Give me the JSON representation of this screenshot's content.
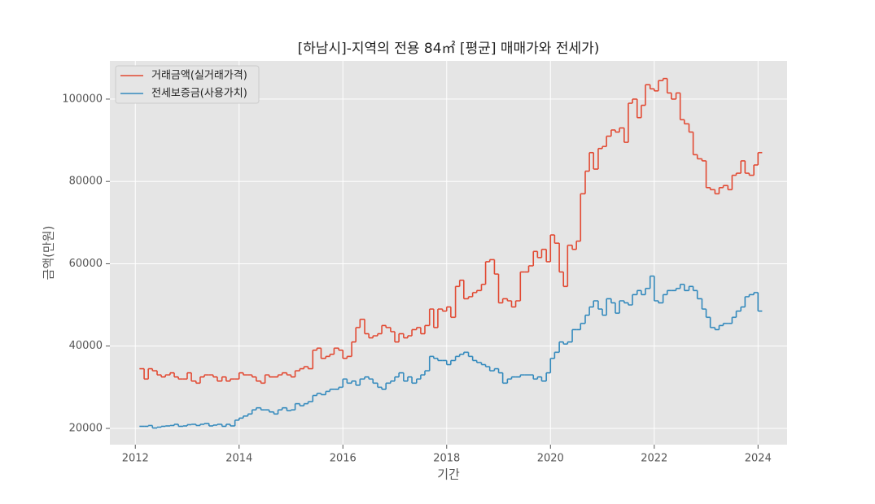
{
  "chart_data": {
    "type": "step",
    "title": "[하남시]-지역의 전용 84㎡ [평균] 매매가와 전세가)",
    "xlabel": "기간",
    "ylabel": "금액(만원)",
    "xlim": [
      2011.51,
      2024.56
    ],
    "xticks": [
      2012,
      2014,
      2016,
      2018,
      2020,
      2022,
      2024
    ],
    "ylim": [
      16050,
      109270
    ],
    "yticks": [
      20000,
      40000,
      60000,
      80000,
      100000
    ],
    "grid": true,
    "legend": "upper left",
    "x": [
      2012.08,
      2012.17,
      2012.25,
      2012.33,
      2012.42,
      2012.5,
      2012.58,
      2012.67,
      2012.75,
      2012.83,
      2012.92,
      2013.0,
      2013.08,
      2013.17,
      2013.25,
      2013.33,
      2013.42,
      2013.5,
      2013.58,
      2013.67,
      2013.75,
      2013.83,
      2013.92,
      2014.0,
      2014.08,
      2014.17,
      2014.25,
      2014.33,
      2014.42,
      2014.5,
      2014.58,
      2014.67,
      2014.75,
      2014.83,
      2014.92,
      2015.0,
      2015.08,
      2015.17,
      2015.25,
      2015.33,
      2015.42,
      2015.5,
      2015.58,
      2015.67,
      2015.75,
      2015.83,
      2015.92,
      2016.0,
      2016.08,
      2016.17,
      2016.25,
      2016.33,
      2016.42,
      2016.5,
      2016.58,
      2016.67,
      2016.75,
      2016.83,
      2016.92,
      2017.0,
      2017.08,
      2017.17,
      2017.25,
      2017.33,
      2017.42,
      2017.5,
      2017.58,
      2017.67,
      2017.75,
      2017.83,
      2017.92,
      2018.0,
      2018.08,
      2018.17,
      2018.25,
      2018.33,
      2018.42,
      2018.5,
      2018.58,
      2018.67,
      2018.75,
      2018.83,
      2018.92,
      2019.0,
      2019.08,
      2019.17,
      2019.25,
      2019.33,
      2019.42,
      2019.5,
      2019.58,
      2019.67,
      2019.75,
      2019.83,
      2019.92,
      2020.0,
      2020.08,
      2020.17,
      2020.25,
      2020.33,
      2020.42,
      2020.5,
      2020.58,
      2020.67,
      2020.75,
      2020.83,
      2020.92,
      2021.0,
      2021.08,
      2021.17,
      2021.25,
      2021.33,
      2021.42,
      2021.5,
      2021.58,
      2021.67,
      2021.75,
      2021.83,
      2021.92,
      2022.0,
      2022.08,
      2022.17,
      2022.25,
      2022.33,
      2022.42,
      2022.5,
      2022.58,
      2022.67,
      2022.75,
      2022.83,
      2022.92,
      2023.0,
      2023.08,
      2023.17,
      2023.25,
      2023.33,
      2023.42,
      2023.5,
      2023.58,
      2023.67,
      2023.75,
      2023.83,
      2023.92,
      2024.0
    ],
    "series": [
      {
        "name": "거래금액(실거래가격)",
        "color": "#E24A33",
        "values": [
          34500,
          32000,
          34500,
          34000,
          33000,
          32500,
          33000,
          33500,
          32500,
          32000,
          32000,
          33500,
          31500,
          31000,
          32500,
          33000,
          33000,
          32500,
          31500,
          32500,
          31500,
          32000,
          32000,
          33500,
          33000,
          33000,
          32500,
          31500,
          31000,
          33000,
          32500,
          32500,
          33000,
          33500,
          33000,
          32500,
          34000,
          34500,
          35000,
          34500,
          39000,
          39500,
          37000,
          37500,
          38000,
          39500,
          39000,
          37000,
          37500,
          41000,
          44500,
          46500,
          43000,
          42000,
          42500,
          43000,
          45000,
          44500,
          43500,
          41000,
          43000,
          42000,
          42500,
          44000,
          44500,
          43000,
          45000,
          49000,
          44500,
          49000,
          48500,
          49500,
          47000,
          54500,
          56000,
          51500,
          52000,
          53000,
          53500,
          55000,
          60500,
          61000,
          57500,
          50500,
          51500,
          51000,
          49500,
          51000,
          58000,
          58000,
          59500,
          63000,
          61500,
          63500,
          60500,
          67000,
          65000,
          58000,
          54500,
          64500,
          63500,
          65500,
          77000,
          82500,
          87000,
          83000,
          88000,
          88500,
          91000,
          92500,
          92000,
          93000,
          89500,
          99000,
          100000,
          95500,
          98500,
          103500,
          102500,
          102000,
          104500,
          105000,
          101500,
          100000,
          101500,
          95000,
          94000,
          92000,
          86500,
          85500,
          85000,
          78500,
          78000,
          77000,
          78500,
          79000,
          78000,
          81500,
          82000,
          85000,
          82000,
          81500,
          84000,
          87000
        ]
      },
      {
        "name": "전세보증금(사용가치)",
        "color": "#348ABD",
        "values": [
          20500,
          20500,
          20700,
          20100,
          20300,
          20500,
          20600,
          20700,
          21000,
          20500,
          20600,
          20900,
          21000,
          20700,
          21000,
          21200,
          20600,
          20800,
          21000,
          20500,
          21000,
          20600,
          22000,
          22500,
          23000,
          23500,
          24500,
          25000,
          24500,
          24500,
          24000,
          23500,
          24500,
          25000,
          24300,
          24500,
          26000,
          25500,
          26000,
          26500,
          28000,
          28500,
          28200,
          29000,
          29500,
          29500,
          30000,
          32000,
          31000,
          31500,
          30500,
          32000,
          32500,
          32000,
          31000,
          30000,
          29500,
          31000,
          31500,
          32500,
          33500,
          31500,
          32500,
          31000,
          32000,
          33000,
          34000,
          37500,
          37000,
          36500,
          36500,
          35500,
          36500,
          37500,
          38000,
          38500,
          37500,
          36500,
          36000,
          35500,
          35000,
          34000,
          34500,
          33500,
          31000,
          32000,
          32500,
          32500,
          33000,
          33000,
          33000,
          32000,
          32500,
          31500,
          33500,
          37000,
          38500,
          41000,
          40500,
          41000,
          44000,
          44000,
          45500,
          47500,
          49500,
          51000,
          49000,
          47500,
          51500,
          50500,
          48000,
          51000,
          50500,
          50000,
          52500,
          53500,
          52500,
          54000,
          57000,
          51000,
          50500,
          52500,
          53500,
          53500,
          54000,
          55000,
          53500,
          54500,
          53500,
          51500,
          49000,
          47000,
          44500,
          44000,
          45000,
          45500,
          45500,
          47000,
          48500,
          49500,
          52000,
          52500,
          53000,
          48500
        ]
      }
    ]
  }
}
